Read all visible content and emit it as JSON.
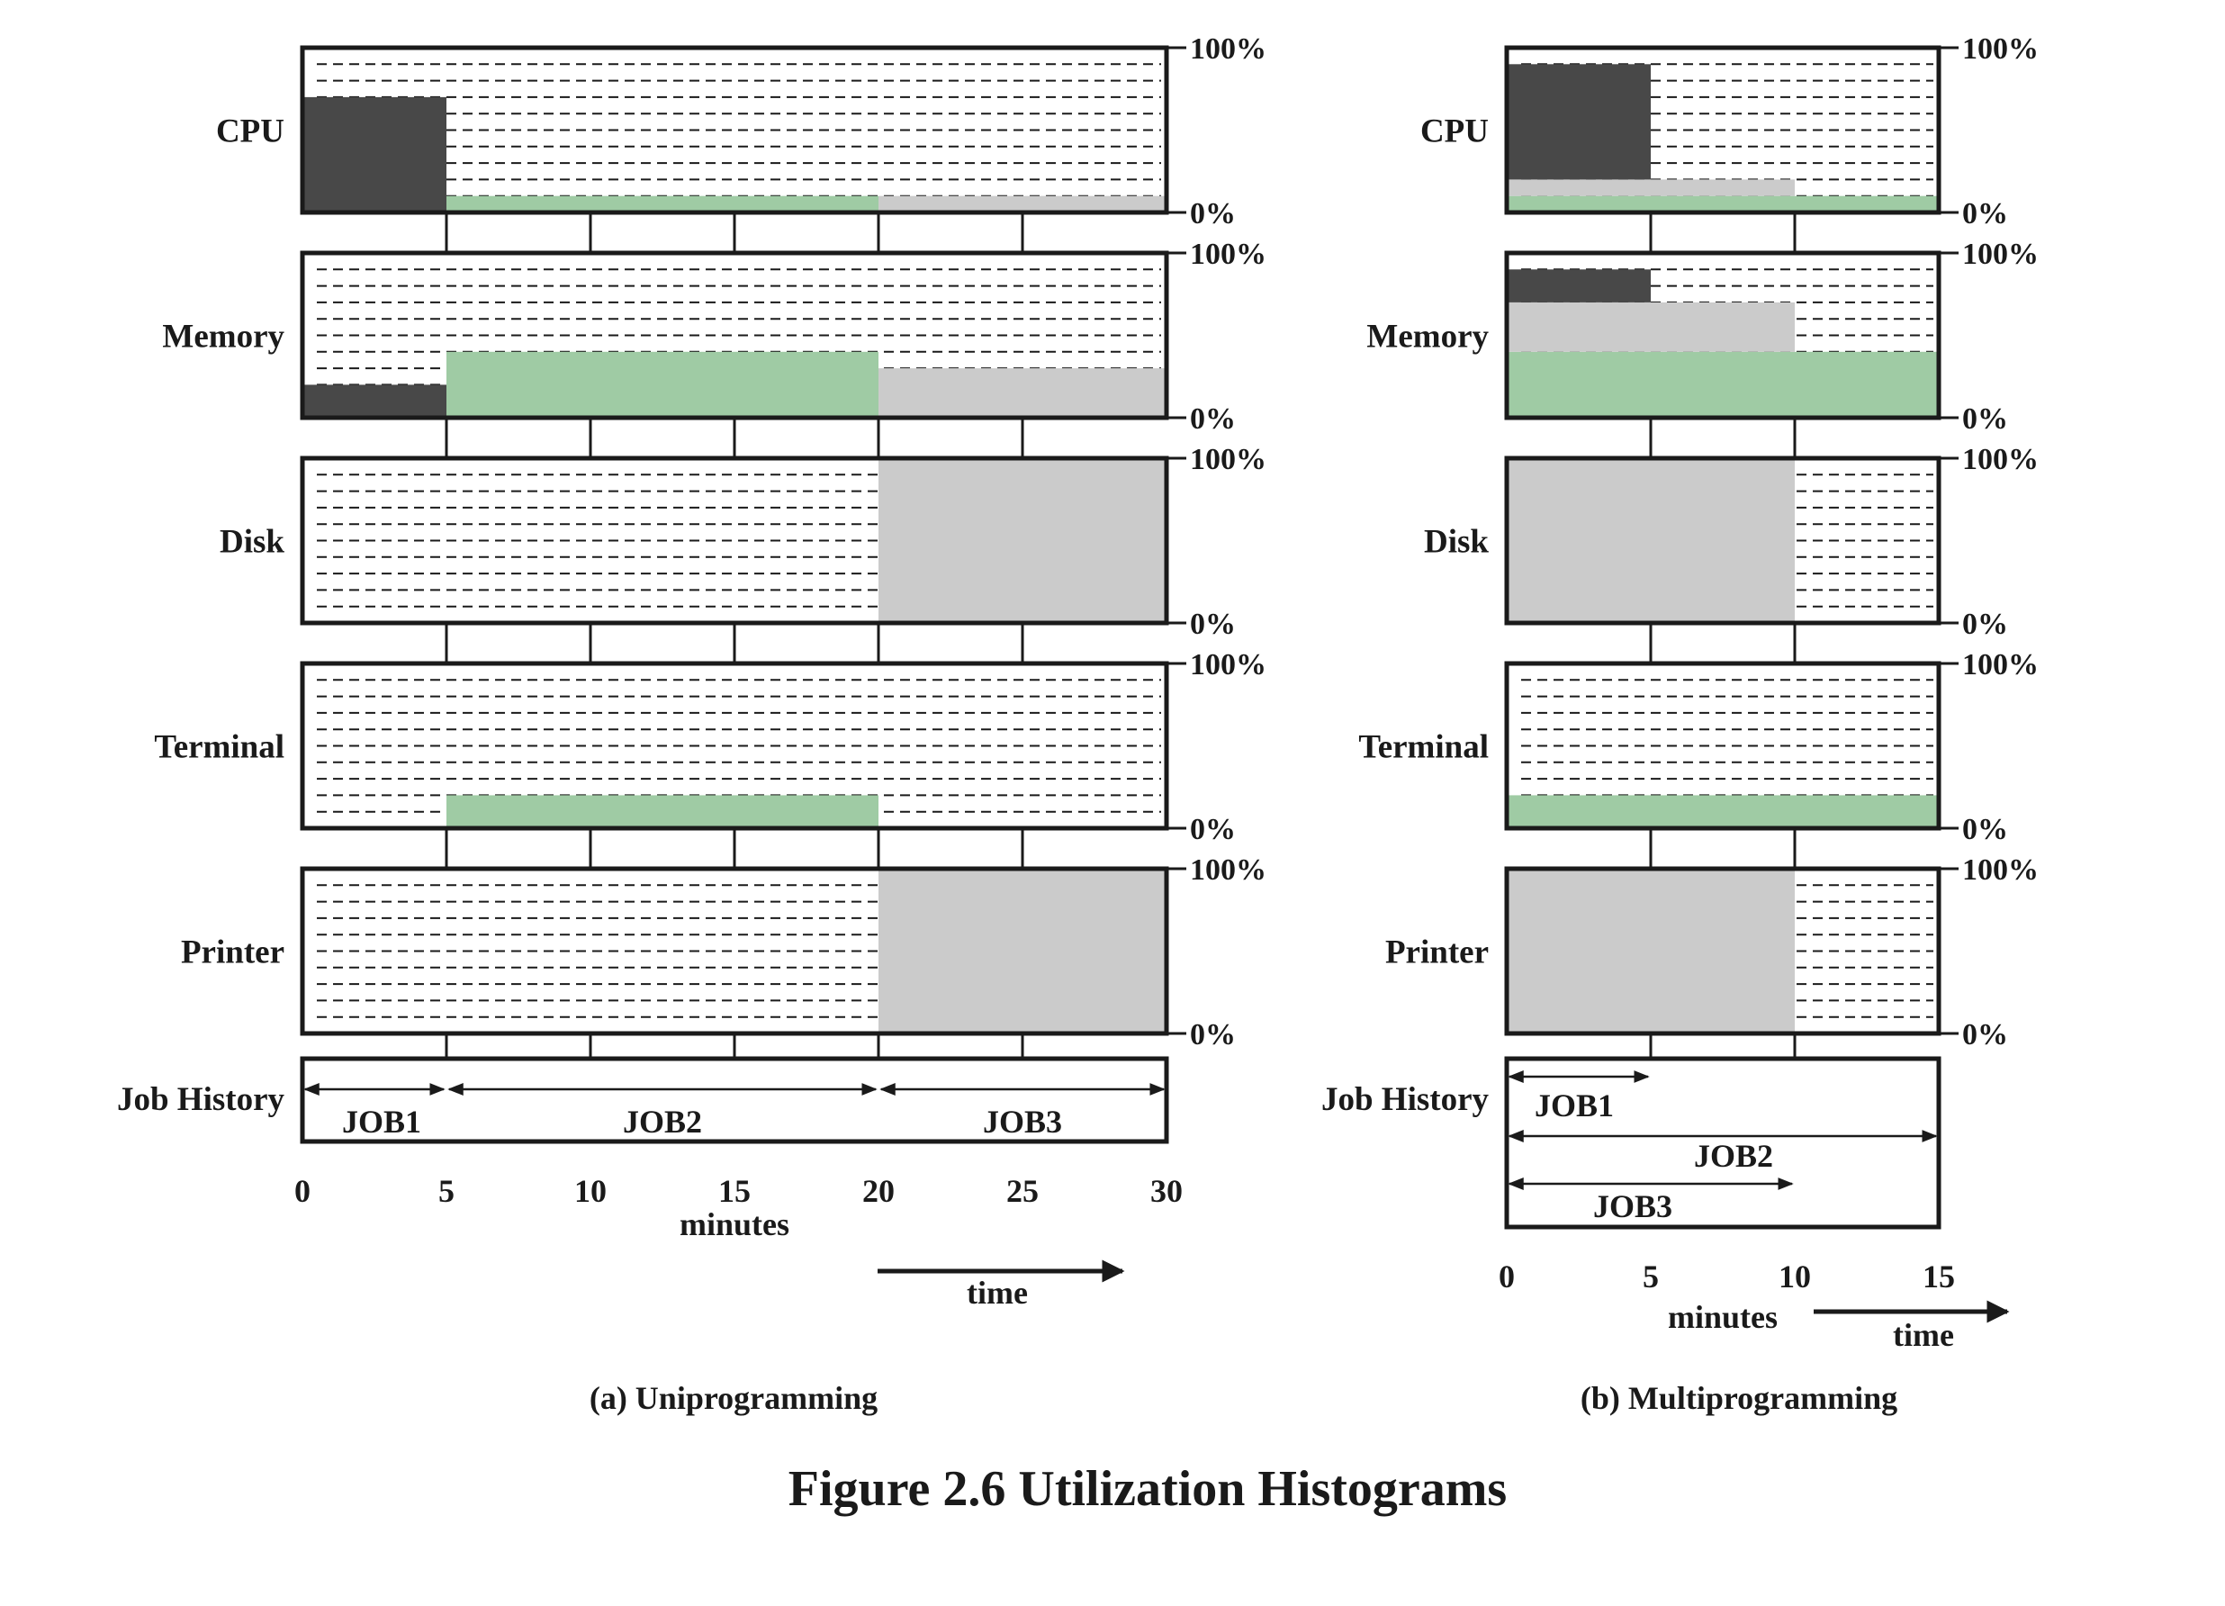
{
  "figure": {
    "title": "Figure 2.6  Utilization Histograms"
  },
  "colors": {
    "job1": "#484848",
    "job2": "#9fcba4",
    "job3": "#cbcbcb",
    "border": "#1a1a1a",
    "grid": "#1a1a1a"
  },
  "chart_data": [
    {
      "type": "bar",
      "caption": "(a) Uniprogramming",
      "xlabel": "minutes",
      "time_label": "time",
      "xlim": [
        0,
        30
      ],
      "x_ticks": [
        0,
        5,
        10,
        15,
        20,
        25,
        30
      ],
      "x_tick_labels": [
        "0",
        "5",
        "10",
        "15",
        "20",
        "25",
        "30"
      ],
      "y_top_label": "100%",
      "y_bottom_label": "0%",
      "ylim": [
        0,
        100
      ],
      "grid": true,
      "resources": [
        {
          "label": "CPU",
          "segments": [
            {
              "job": "job1",
              "x0": 0,
              "x1": 5,
              "y0": 0,
              "y1": 70
            },
            {
              "job": "job2",
              "x0": 5,
              "x1": 20,
              "y0": 0,
              "y1": 10
            },
            {
              "job": "job3",
              "x0": 20,
              "x1": 30,
              "y0": 0,
              "y1": 10
            }
          ]
        },
        {
          "label": "Memory",
          "segments": [
            {
              "job": "job1",
              "x0": 0,
              "x1": 5,
              "y0": 0,
              "y1": 20
            },
            {
              "job": "job2",
              "x0": 5,
              "x1": 20,
              "y0": 0,
              "y1": 40
            },
            {
              "job": "job3",
              "x0": 20,
              "x1": 30,
              "y0": 0,
              "y1": 30
            }
          ]
        },
        {
          "label": "Disk",
          "segments": [
            {
              "job": "job3",
              "x0": 20,
              "x1": 30,
              "y0": 0,
              "y1": 100
            }
          ]
        },
        {
          "label": "Terminal",
          "segments": [
            {
              "job": "job2",
              "x0": 5,
              "x1": 20,
              "y0": 0,
              "y1": 20
            }
          ]
        },
        {
          "label": "Printer",
          "segments": [
            {
              "job": "job3",
              "x0": 20,
              "x1": 30,
              "y0": 0,
              "y1": 100
            }
          ]
        }
      ],
      "job_history": {
        "label": "Job History",
        "jobs": [
          {
            "name": "JOB1",
            "start": 0,
            "end": 5,
            "lane": 0
          },
          {
            "name": "JOB2",
            "start": 5,
            "end": 20,
            "lane": 0
          },
          {
            "name": "JOB3",
            "start": 20,
            "end": 30,
            "lane": 0
          }
        ]
      }
    },
    {
      "type": "bar",
      "caption": "(b) Multiprogramming",
      "xlabel": "minutes",
      "time_label": "time",
      "xlim": [
        0,
        15
      ],
      "x_ticks": [
        0,
        5,
        10,
        15
      ],
      "x_tick_labels": [
        "0",
        "5",
        "10",
        "15"
      ],
      "y_top_label": "100%",
      "y_bottom_label": "0%",
      "ylim": [
        0,
        100
      ],
      "grid": true,
      "resources": [
        {
          "label": "CPU",
          "segments": [
            {
              "job": "job2",
              "x0": 0,
              "x1": 15,
              "y0": 0,
              "y1": 10
            },
            {
              "job": "job3",
              "x0": 0,
              "x1": 10,
              "y0": 10,
              "y1": 20
            },
            {
              "job": "job1",
              "x0": 0,
              "x1": 5,
              "y0": 20,
              "y1": 90
            }
          ]
        },
        {
          "label": "Memory",
          "segments": [
            {
              "job": "job2",
              "x0": 0,
              "x1": 15,
              "y0": 0,
              "y1": 40
            },
            {
              "job": "job3",
              "x0": 0,
              "x1": 10,
              "y0": 40,
              "y1": 70
            },
            {
              "job": "job1",
              "x0": 0,
              "x1": 5,
              "y0": 70,
              "y1": 90
            }
          ]
        },
        {
          "label": "Disk",
          "segments": [
            {
              "job": "job3",
              "x0": 0,
              "x1": 10,
              "y0": 0,
              "y1": 100
            }
          ]
        },
        {
          "label": "Terminal",
          "segments": [
            {
              "job": "job2",
              "x0": 0,
              "x1": 15,
              "y0": 0,
              "y1": 20
            }
          ]
        },
        {
          "label": "Printer",
          "segments": [
            {
              "job": "job3",
              "x0": 0,
              "x1": 10,
              "y0": 0,
              "y1": 100
            }
          ]
        }
      ],
      "job_history": {
        "label": "Job History",
        "jobs": [
          {
            "name": "JOB1",
            "start": 0,
            "end": 5,
            "lane": 0
          },
          {
            "name": "JOB2",
            "start": 0,
            "end": 15,
            "lane": 1
          },
          {
            "name": "JOB3",
            "start": 0,
            "end": 10,
            "lane": 2
          }
        ]
      }
    }
  ]
}
